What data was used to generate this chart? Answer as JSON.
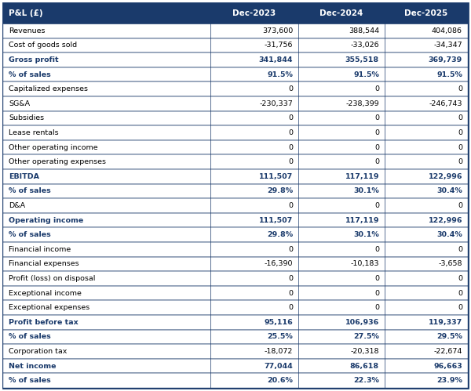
{
  "header_bg": "#1a3a6b",
  "header_text_color": "#ffffff",
  "bold_row_text_color": "#1a3a6b",
  "normal_text_color": "#000000",
  "percent_text_color": "#1a3a6b",
  "border_color": "#1a3a6b",
  "col_header": "P&L (£)",
  "col1": "Dec-2023",
  "col2": "Dec-2024",
  "col3": "Dec-2025",
  "rows": [
    {
      "label": "Revenues",
      "bold": false,
      "percent": false,
      "v1": "373,600",
      "v2": "388,544",
      "v3": "404,086"
    },
    {
      "label": "Cost of goods sold",
      "bold": false,
      "percent": false,
      "v1": "-31,756",
      "v2": "-33,026",
      "v3": "-34,347"
    },
    {
      "label": "Gross profit",
      "bold": true,
      "percent": false,
      "v1": "341,844",
      "v2": "355,518",
      "v3": "369,739"
    },
    {
      "label": "% of sales",
      "bold": true,
      "percent": true,
      "v1": "91.5%",
      "v2": "91.5%",
      "v3": "91.5%"
    },
    {
      "label": "Capitalized expenses",
      "bold": false,
      "percent": false,
      "v1": "0",
      "v2": "0",
      "v3": "0"
    },
    {
      "label": "SG&A",
      "bold": false,
      "percent": false,
      "v1": "-230,337",
      "v2": "-238,399",
      "v3": "-246,743"
    },
    {
      "label": "Subsidies",
      "bold": false,
      "percent": false,
      "v1": "0",
      "v2": "0",
      "v3": "0"
    },
    {
      "label": "Lease rentals",
      "bold": false,
      "percent": false,
      "v1": "0",
      "v2": "0",
      "v3": "0"
    },
    {
      "label": "Other operating income",
      "bold": false,
      "percent": false,
      "v1": "0",
      "v2": "0",
      "v3": "0"
    },
    {
      "label": "Other operating expenses",
      "bold": false,
      "percent": false,
      "v1": "0",
      "v2": "0",
      "v3": "0"
    },
    {
      "label": "EBITDA",
      "bold": true,
      "percent": false,
      "v1": "111,507",
      "v2": "117,119",
      "v3": "122,996"
    },
    {
      "label": "% of sales",
      "bold": true,
      "percent": true,
      "v1": "29.8%",
      "v2": "30.1%",
      "v3": "30.4%"
    },
    {
      "label": "D&A",
      "bold": false,
      "percent": false,
      "v1": "0",
      "v2": "0",
      "v3": "0"
    },
    {
      "label": "Operating income",
      "bold": true,
      "percent": false,
      "v1": "111,507",
      "v2": "117,119",
      "v3": "122,996"
    },
    {
      "label": "% of sales",
      "bold": true,
      "percent": true,
      "v1": "29.8%",
      "v2": "30.1%",
      "v3": "30.4%"
    },
    {
      "label": "Financial income",
      "bold": false,
      "percent": false,
      "v1": "0",
      "v2": "0",
      "v3": "0"
    },
    {
      "label": "Financial expenses",
      "bold": false,
      "percent": false,
      "v1": "-16,390",
      "v2": "-10,183",
      "v3": "-3,658"
    },
    {
      "label": "Profit (loss) on disposal",
      "bold": false,
      "percent": false,
      "v1": "0",
      "v2": "0",
      "v3": "0"
    },
    {
      "label": "Exceptional income",
      "bold": false,
      "percent": false,
      "v1": "0",
      "v2": "0",
      "v3": "0"
    },
    {
      "label": "Exceptional expenses",
      "bold": false,
      "percent": false,
      "v1": "0",
      "v2": "0",
      "v3": "0"
    },
    {
      "label": "Profit before tax",
      "bold": true,
      "percent": false,
      "v1": "95,116",
      "v2": "106,936",
      "v3": "119,337"
    },
    {
      "label": "% of sales",
      "bold": true,
      "percent": true,
      "v1": "25.5%",
      "v2": "27.5%",
      "v3": "29.5%"
    },
    {
      "label": "Corporation tax",
      "bold": false,
      "percent": false,
      "v1": "-18,072",
      "v2": "-20,318",
      "v3": "-22,674"
    },
    {
      "label": "Net income",
      "bold": true,
      "percent": false,
      "v1": "77,044",
      "v2": "86,618",
      "v3": "96,663"
    },
    {
      "label": "% of sales",
      "bold": true,
      "percent": true,
      "v1": "20.6%",
      "v2": "22.3%",
      "v3": "23.9%"
    }
  ]
}
